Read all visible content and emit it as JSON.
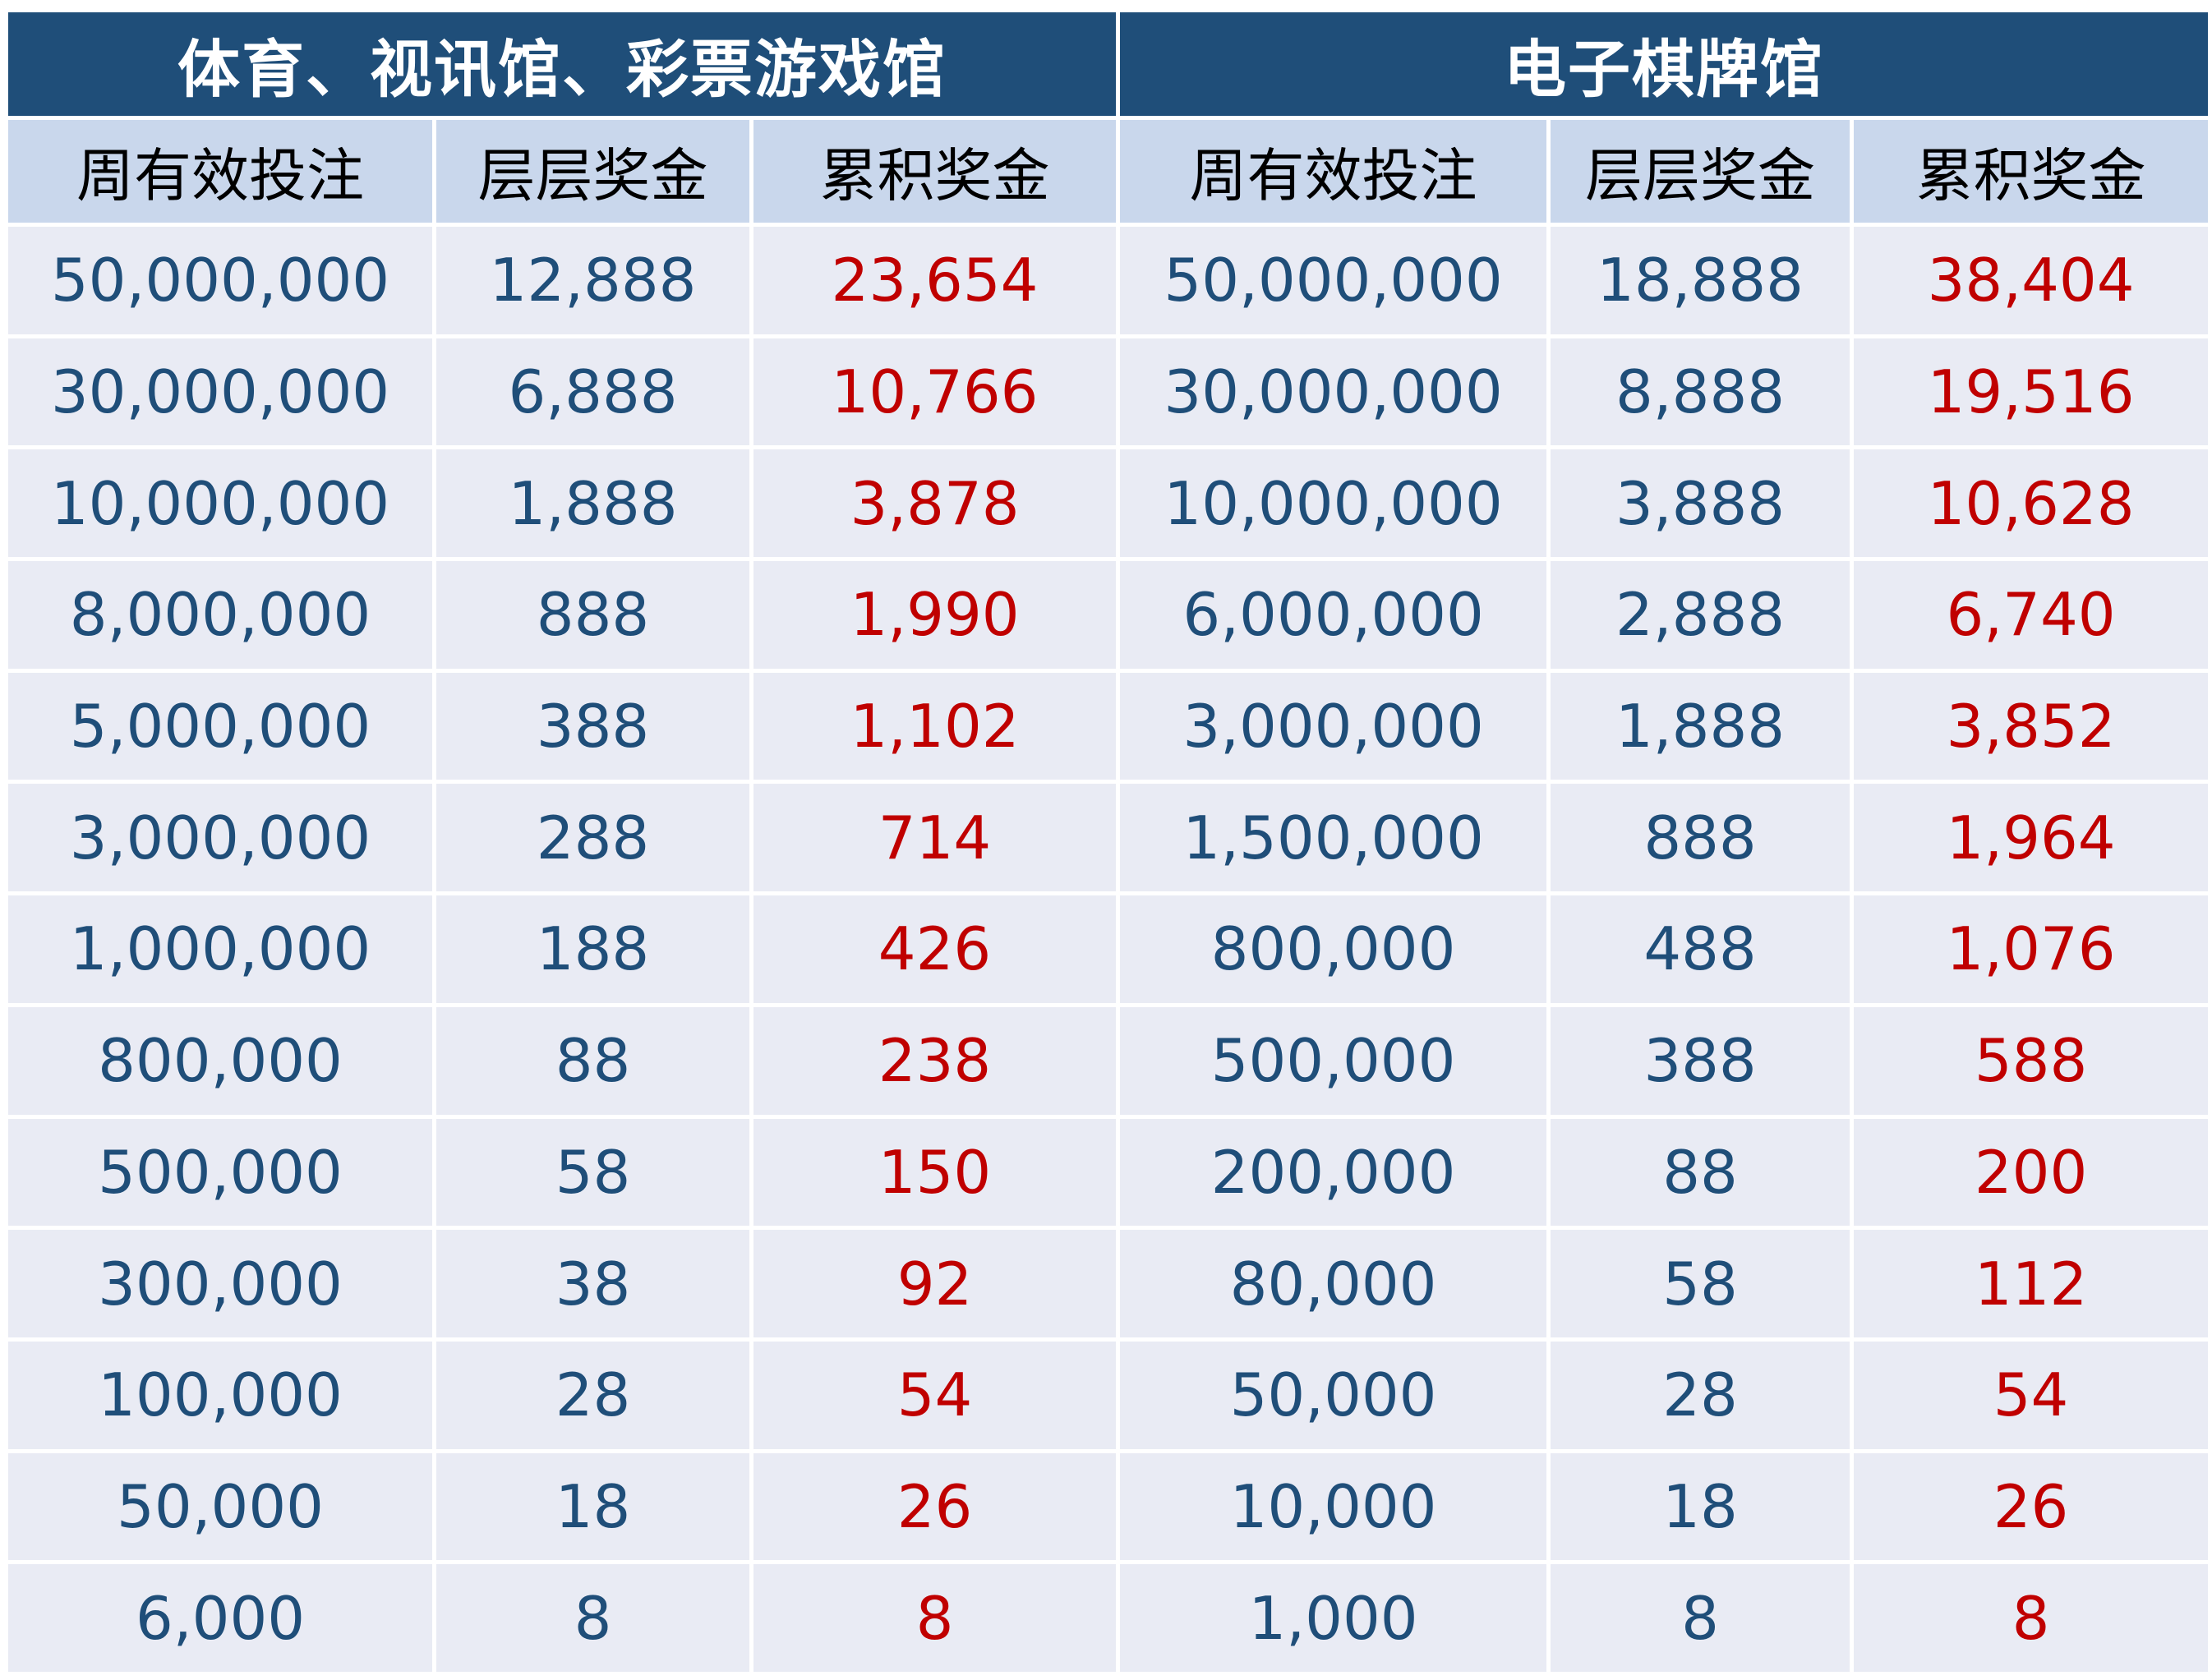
{
  "sections": [
    {
      "title": "体育、视讯馆、彩票游戏馆"
    },
    {
      "title": "电子棋牌馆"
    }
  ],
  "column_headers": [
    "周有效投注",
    "层层奖金",
    "累积奖金",
    "周有效投注",
    "层层奖金",
    "累积奖金"
  ],
  "rows": [
    [
      "50,000,000",
      "12,888",
      "23,654",
      "50,000,000",
      "18,888",
      "38,404"
    ],
    [
      "30,000,000",
      "6,888",
      "10,766",
      "30,000,000",
      "8,888",
      "19,516"
    ],
    [
      "10,000,000",
      "1,888",
      "3,878",
      "10,000,000",
      "3,888",
      "10,628"
    ],
    [
      "8,000,000",
      "888",
      "1,990",
      "6,000,000",
      "2,888",
      "6,740"
    ],
    [
      "5,000,000",
      "388",
      "1,102",
      "3,000,000",
      "1,888",
      "3,852"
    ],
    [
      "3,000,000",
      "288",
      "714",
      "1,500,000",
      "888",
      "1,964"
    ],
    [
      "1,000,000",
      "188",
      "426",
      "800,000",
      "488",
      "1,076"
    ],
    [
      "800,000",
      "88",
      "238",
      "500,000",
      "388",
      "588"
    ],
    [
      "500,000",
      "58",
      "150",
      "200,000",
      "88",
      "200"
    ],
    [
      "300,000",
      "38",
      "92",
      "80,000",
      "58",
      "112"
    ],
    [
      "100,000",
      "28",
      "54",
      "50,000",
      "28",
      "54"
    ],
    [
      "50,000",
      "18",
      "26",
      "10,000",
      "18",
      "26"
    ],
    [
      "6,000",
      "8",
      "8",
      "1,000",
      "8",
      "8"
    ]
  ],
  "colors": {
    "section_header_bg": "#1f4e79",
    "section_header_text": "#ffffff",
    "column_header_bg": "#c9d7ec",
    "row_bg": "#e9ebf4",
    "value_blue": "#1f4e79",
    "value_red": "#c00000"
  }
}
